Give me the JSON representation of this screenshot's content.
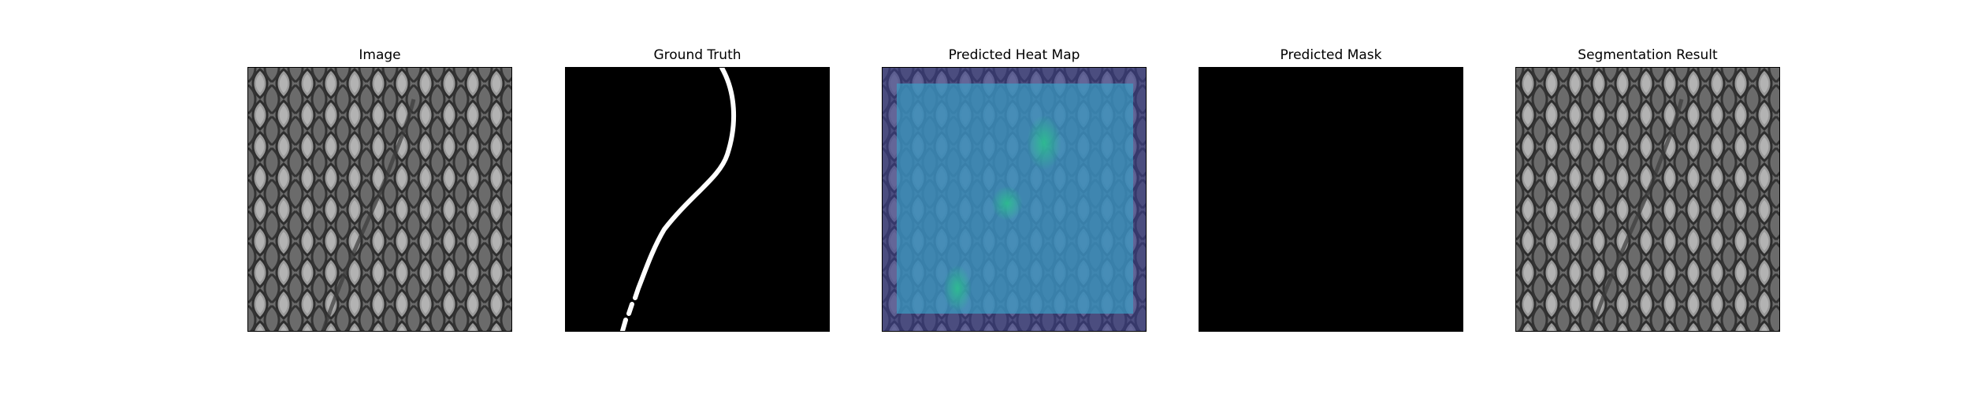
{
  "panels": [
    {
      "id": "image",
      "title": "Image"
    },
    {
      "id": "ground-truth",
      "title": "Ground Truth"
    },
    {
      "id": "heatmap",
      "title": "Predicted Heat Map"
    },
    {
      "id": "mask",
      "title": "Predicted Mask"
    },
    {
      "id": "segmentation",
      "title": "Segmentation Result"
    }
  ],
  "colors": {
    "background": "#ffffff",
    "mask_fill": "#000000",
    "defect_line": "#ffffff",
    "heat_low": "#3b3d8a",
    "heat_mid": "#3a9ec4",
    "heat_high": "#2dbf8f"
  }
}
